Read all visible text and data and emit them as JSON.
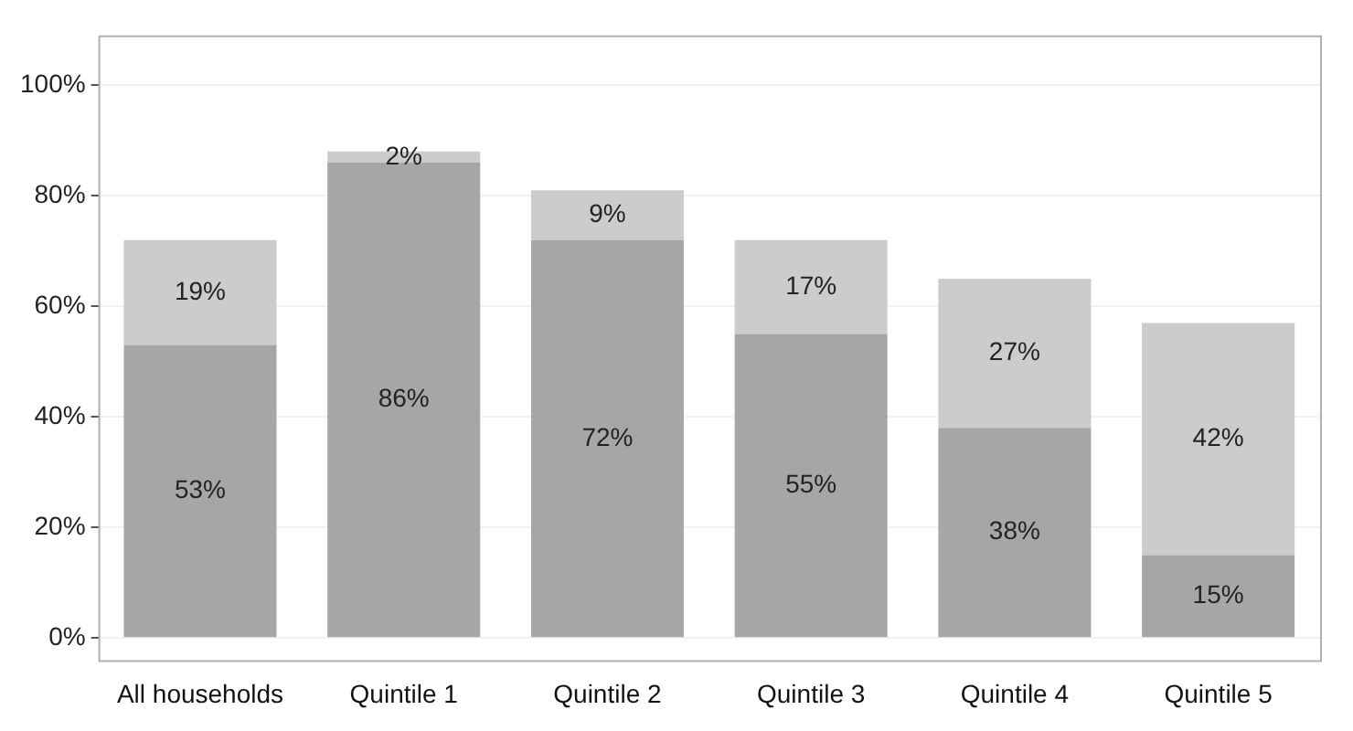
{
  "chart_data": {
    "type": "bar",
    "stacked": true,
    "categories": [
      "All households",
      "Quintile 1",
      "Quintile 2",
      "Quintile 3",
      "Quintile 4",
      "Quintile 5"
    ],
    "series": [
      {
        "color": "#a6a6a6",
        "values": [
          53,
          86,
          72,
          55,
          38,
          15
        ],
        "value_labels": [
          "53%",
          "86%",
          "72%",
          "55%",
          "38%",
          "15%"
        ]
      },
      {
        "color": "#cccccc",
        "values": [
          19,
          2,
          9,
          17,
          27,
          42
        ],
        "value_labels": [
          "19%",
          "2%",
          "9%",
          "17%",
          "27%",
          "42%"
        ]
      }
    ],
    "ylim": [
      -4,
      109
    ],
    "yticks": [
      {
        "value": 0,
        "label": "0%"
      },
      {
        "value": 20,
        "label": "20%"
      },
      {
        "value": 40,
        "label": "40%"
      },
      {
        "value": 60,
        "label": "60%"
      },
      {
        "value": 80,
        "label": "80%"
      },
      {
        "value": 100,
        "label": "100%"
      }
    ],
    "grid": true,
    "legend": false
  }
}
